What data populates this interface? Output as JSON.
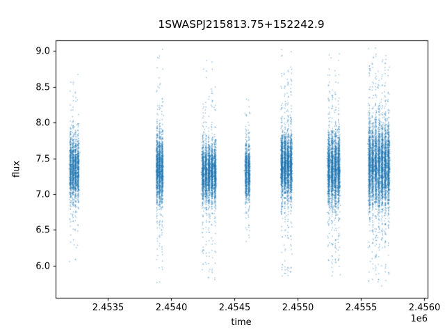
{
  "chart_data": {
    "type": "scatter",
    "title": "1SWASPJ215813.75+152242.9",
    "xlabel": "time",
    "ylabel": "flux",
    "x_offset_label": "1e6",
    "xlim": [
      2453088,
      2456027
    ],
    "ylim": [
      5.55,
      9.15
    ],
    "x_ticks": [
      {
        "value": 2453500,
        "label": "2.4535"
      },
      {
        "value": 2454000,
        "label": "2.4540"
      },
      {
        "value": 2454500,
        "label": "2.4545"
      },
      {
        "value": 2455000,
        "label": "2.4550"
      },
      {
        "value": 2455500,
        "label": "2.4555"
      },
      {
        "value": 2456000,
        "label": "2.4560"
      }
    ],
    "y_ticks": [
      {
        "value": 6.0,
        "label": "6.0"
      },
      {
        "value": 6.5,
        "label": "6.5"
      },
      {
        "value": 7.0,
        "label": "7.0"
      },
      {
        "value": 7.5,
        "label": "7.5"
      },
      {
        "value": 8.0,
        "label": "8.0"
      },
      {
        "value": 8.5,
        "label": "8.5"
      },
      {
        "value": 9.0,
        "label": "9.0"
      }
    ],
    "point_color": "#1f77b4",
    "point_alpha": 0.5,
    "marker_size_px": 1.4,
    "seed": 42,
    "clusters": [
      {
        "center": 2453236,
        "width": 80,
        "nights": 4,
        "n_core": 1500,
        "core_mean": 7.35,
        "core_sd": 0.22,
        "n_tail": 130,
        "tail_mean": 7.3,
        "tail_sd": 0.75,
        "flux_min": 6.05,
        "flux_max": 8.75
      },
      {
        "center": 2453910,
        "width": 60,
        "nights": 3,
        "n_core": 1400,
        "core_mean": 7.35,
        "core_sd": 0.22,
        "n_tail": 200,
        "tail_mean": 7.3,
        "tail_sd": 0.85,
        "flux_min": 5.75,
        "flux_max": 9.05
      },
      {
        "center": 2454300,
        "width": 120,
        "nights": 5,
        "n_core": 2400,
        "core_mean": 7.3,
        "core_sd": 0.2,
        "n_tail": 240,
        "tail_mean": 7.2,
        "tail_sd": 0.8,
        "flux_min": 5.75,
        "flux_max": 8.9
      },
      {
        "center": 2454604,
        "width": 45,
        "nights": 2,
        "n_core": 900,
        "core_mean": 7.3,
        "core_sd": 0.2,
        "n_tail": 90,
        "tail_mean": 7.3,
        "tail_sd": 0.6,
        "flux_min": 6.3,
        "flux_max": 8.35
      },
      {
        "center": 2454912,
        "width": 95,
        "nights": 4,
        "n_core": 2200,
        "core_mean": 7.4,
        "core_sd": 0.22,
        "n_tail": 280,
        "tail_mean": 7.3,
        "tail_sd": 0.85,
        "flux_min": 5.8,
        "flux_max": 9.05
      },
      {
        "center": 2455286,
        "width": 105,
        "nights": 4,
        "n_core": 2200,
        "core_mean": 7.35,
        "core_sd": 0.24,
        "n_tail": 300,
        "tail_mean": 7.3,
        "tail_sd": 0.85,
        "flux_min": 5.85,
        "flux_max": 9.0
      },
      {
        "center": 2455643,
        "width": 175,
        "nights": 7,
        "n_core": 3600,
        "core_mean": 7.4,
        "core_sd": 0.28,
        "n_tail": 600,
        "tail_mean": 7.4,
        "tail_sd": 0.9,
        "flux_min": 5.7,
        "flux_max": 9.05
      }
    ]
  }
}
